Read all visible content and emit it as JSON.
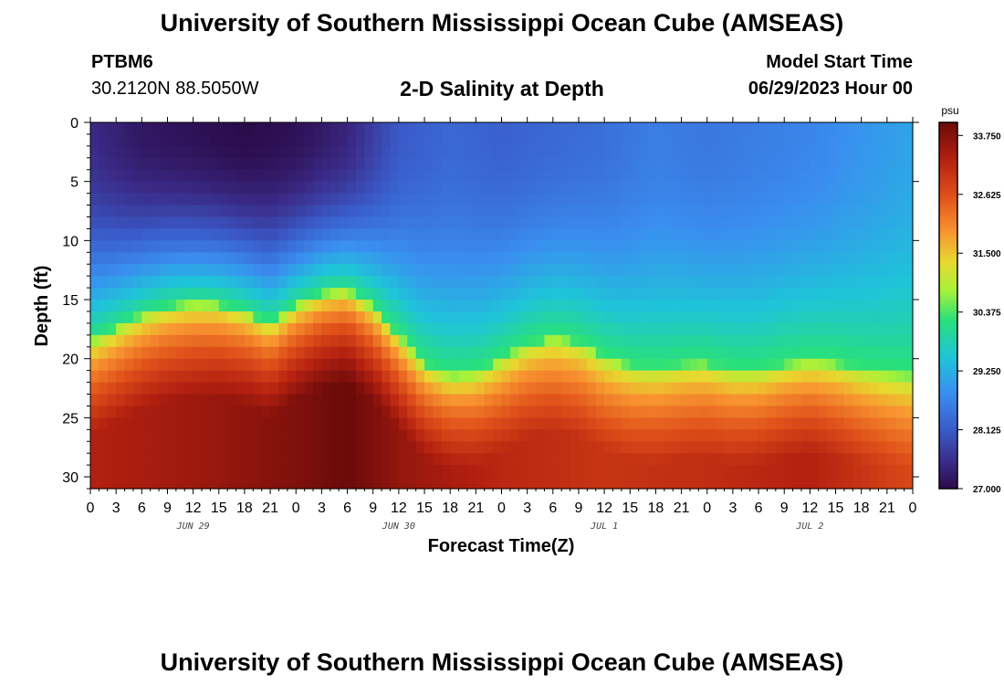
{
  "header": {
    "title": "University of Southern Mississippi Ocean Cube (AMSEAS)",
    "station_id": "PTBM6",
    "coordinates": "30.2120N  88.5050W",
    "plot_title": "2-D Salinity at Depth",
    "model_start_label": "Model Start Time",
    "model_start_value": "06/29/2023 Hour 00"
  },
  "footer": {
    "title": "University of Southern Mississippi Ocean Cube (AMSEAS)"
  },
  "chart_data": {
    "type": "heatmap",
    "title": "2-D Salinity at Depth",
    "xlabel": "Forecast Time(Z)",
    "ylabel": "Depth (ft)",
    "x_hours": [
      0,
      96
    ],
    "x_tick_step_hours": 3,
    "x_tick_labels": [
      "0",
      "3",
      "6",
      "9",
      "12",
      "15",
      "18",
      "21",
      "0",
      "3",
      "6",
      "9",
      "12",
      "15",
      "18",
      "21",
      "0",
      "3",
      "6",
      "9",
      "12",
      "15",
      "18",
      "21",
      "0",
      "3",
      "6",
      "9",
      "12",
      "15",
      "18",
      "21",
      "0"
    ],
    "day_labels": [
      {
        "label": "JUN 29",
        "hour": 12
      },
      {
        "label": "JUN 30",
        "hour": 36
      },
      {
        "label": "JUL 1",
        "hour": 60
      },
      {
        "label": "JUL 2",
        "hour": 84
      }
    ],
    "ylim": [
      0,
      31
    ],
    "y_ticks": [
      0,
      5,
      10,
      15,
      20,
      25,
      30
    ],
    "y_tick_labels": [
      "0",
      "5",
      "10",
      "15",
      "20",
      "25",
      "30"
    ],
    "colorbar": {
      "unit": "psu",
      "min": 27.0,
      "max": 34.0,
      "ticks": [
        27.0,
        28.125,
        29.25,
        30.375,
        31.5,
        32.625,
        33.75
      ],
      "tick_labels": [
        "27.000",
        "28.125",
        "29.250",
        "30.375",
        "31.500",
        "32.625",
        "33.750"
      ]
    },
    "halocline": {
      "hours": [
        0,
        6,
        9,
        12,
        15,
        18,
        21,
        24,
        27,
        30,
        33,
        36,
        39,
        42,
        45,
        48,
        51,
        54,
        57,
        60,
        63,
        66,
        69,
        72,
        75,
        78,
        81,
        84,
        87,
        90,
        93,
        96
      ],
      "depth_ft": [
        18.5,
        16.3,
        15.6,
        15.3,
        15.4,
        16.0,
        17.0,
        15.5,
        14.5,
        14.2,
        15.6,
        18.0,
        20.5,
        21.4,
        21.2,
        20.0,
        18.8,
        18.2,
        18.6,
        19.8,
        20.6,
        20.8,
        20.5,
        20.4,
        21.0,
        21.0,
        20.5,
        20.2,
        20.4,
        20.9,
        21.2,
        21.4
      ]
    },
    "surface_salinity_psu": {
      "hours": [
        0,
        6,
        12,
        18,
        24,
        30,
        36,
        42,
        48,
        54,
        60,
        66,
        72,
        78,
        84,
        90,
        96
      ],
      "values": [
        27.5,
        27.2,
        27.1,
        27.0,
        27.1,
        27.4,
        28.1,
        28.3,
        28.2,
        28.3,
        28.4,
        28.6,
        28.5,
        28.6,
        28.7,
        28.9,
        29.1
      ]
    },
    "bottom_salinity_psu": {
      "hours": [
        0,
        12,
        24,
        30,
        36,
        48,
        60,
        72,
        84,
        96
      ],
      "values": [
        33.3,
        33.5,
        33.8,
        34.0,
        33.6,
        33.2,
        33.0,
        33.1,
        33.3,
        32.7
      ]
    }
  }
}
